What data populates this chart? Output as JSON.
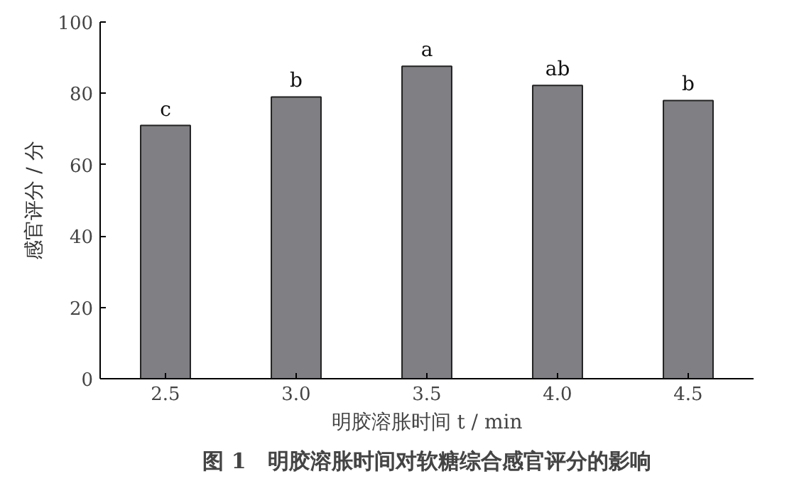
{
  "chart_data": {
    "type": "bar",
    "title": "图 1　明胶溶胀时间对软糖综合感官评分的影响",
    "xlabel": "明胶溶胀时间 t / min",
    "ylabel": "感官评分 / 分",
    "categories": [
      "2.5",
      "3.0",
      "3.5",
      "4.0",
      "4.5"
    ],
    "values": [
      71,
      79,
      87.6,
      82.2,
      78
    ],
    "color": "#808084",
    "ylim": [
      0,
      100
    ],
    "yticks": [
      0,
      20,
      40,
      60,
      80,
      100
    ],
    "grid": false,
    "annotations": [
      {
        "text": "c",
        "x": "2.5",
        "y": 71
      },
      {
        "text": "b",
        "x": "3.0",
        "y": 79
      },
      {
        "text": "a",
        "x": "3.5",
        "y": 87.6
      },
      {
        "text": "ab",
        "x": "4.0",
        "y": 82.2
      },
      {
        "text": "b",
        "x": "4.5",
        "y": 78
      }
    ]
  }
}
